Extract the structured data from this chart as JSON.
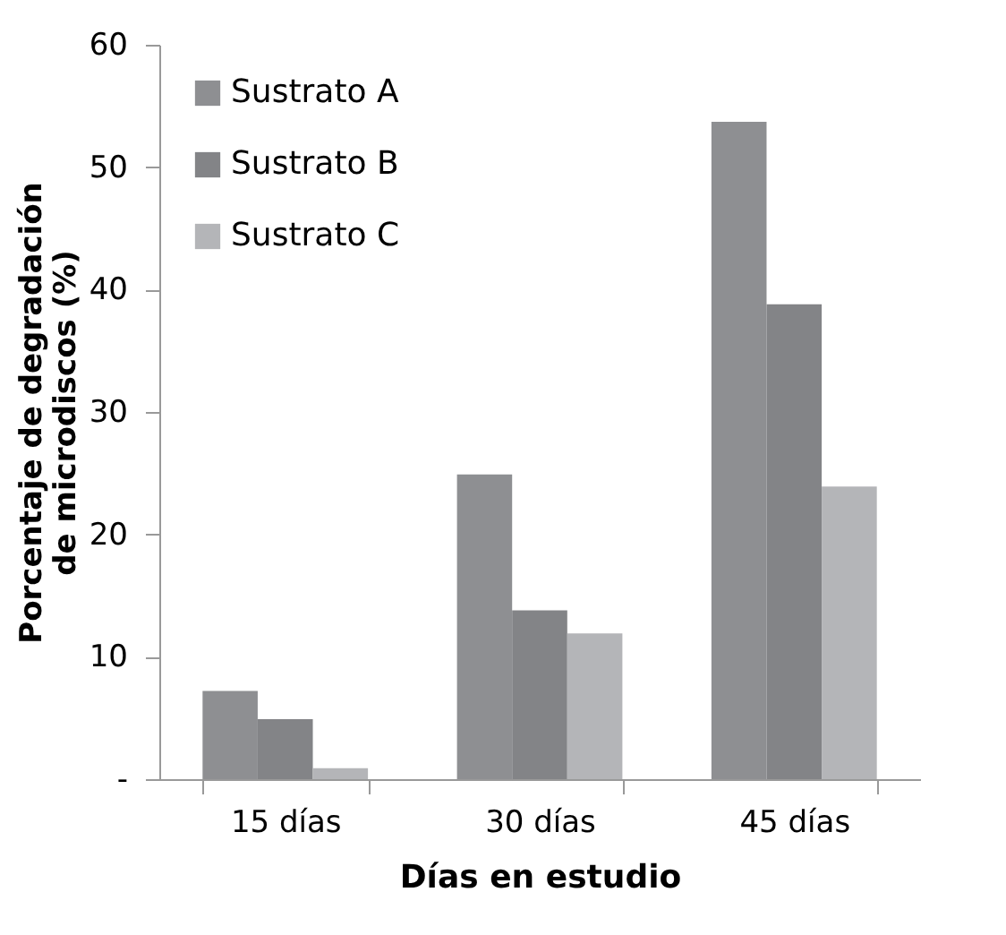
{
  "chart_data": {
    "type": "bar",
    "xlabel": "Días en estudio",
    "ylabel": "Porcentaje de degradación de microdiscos (%)",
    "categories": [
      "15 días",
      "30 días",
      "45 días"
    ],
    "series": [
      {
        "name": "Sustrato A",
        "color": "#8e8f92",
        "values": [
          7.2,
          24.9,
          53.7
        ]
      },
      {
        "name": "Sustrato B",
        "color": "#838487",
        "values": [
          4.9,
          13.8,
          38.8
        ]
      },
      {
        "name": "Sustrato C",
        "color": "#b4b5b8",
        "values": [
          0.9,
          11.9,
          23.9
        ]
      }
    ],
    "ylim": [
      0,
      60
    ],
    "yticks": [
      {
        "value": 0,
        "label": "-"
      },
      10,
      20,
      30,
      40,
      50,
      60
    ],
    "grid": false,
    "legend": "top left"
  }
}
